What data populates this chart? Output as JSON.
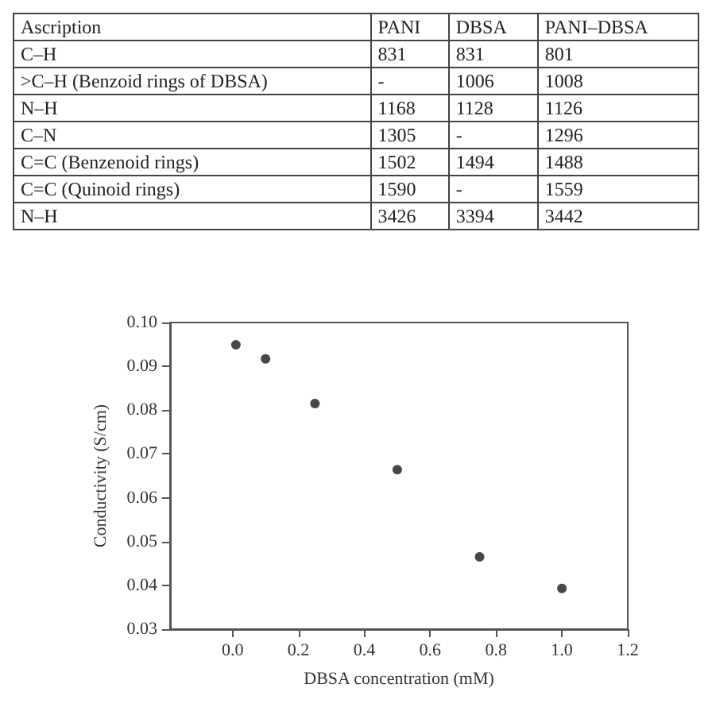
{
  "chart_data": [
    {
      "type": "other",
      "categories": [
        "Ascription",
        "PANI",
        "DBSA",
        "PANI–DBSA"
      ],
      "y_categories": [
        "C–H",
        ">C–H (Benzoid rings of DBSA)",
        "N–H",
        "C–N",
        "C=C (Benzenoid rings)",
        "C=C (Quinoid rings)",
        "N–H"
      ],
      "cell_labels": [
        [
          "831",
          "831",
          "801"
        ],
        [
          "-",
          "1006",
          "1008"
        ],
        [
          "1168",
          "1128",
          "1126"
        ],
        [
          "1305",
          "-",
          "1296"
        ],
        [
          "1502",
          "1494",
          "1488"
        ],
        [
          "1590",
          "-",
          "1559"
        ],
        [
          "3426",
          "3394",
          "3442"
        ]
      ]
    },
    {
      "type": "scatter",
      "xlabel": "DBSA concentration (mM)",
      "ylabel": "Conductivity (S/cm)",
      "x": [
        0.01,
        0.1,
        0.25,
        0.5,
        0.75,
        1.0
      ],
      "values": [
        0.0949,
        0.0917,
        0.0815,
        0.0664,
        0.0465,
        0.0393
      ],
      "color": "#1a1a1a",
      "marker": "circle",
      "grid": false,
      "xlim": [
        -0.19,
        1.2
      ],
      "ylim": [
        0.03,
        0.1
      ],
      "xticks": [
        {
          "value": 0,
          "label": "0.0"
        },
        0.2,
        0.4,
        0.6,
        0.8,
        {
          "value": 1,
          "label": "1.0"
        },
        1.2
      ],
      "yticks": [
        0.03,
        0.04,
        0.05,
        0.06,
        0.07,
        0.08,
        0.09,
        {
          "value": 0.1,
          "label": "0.10"
        }
      ]
    }
  ]
}
